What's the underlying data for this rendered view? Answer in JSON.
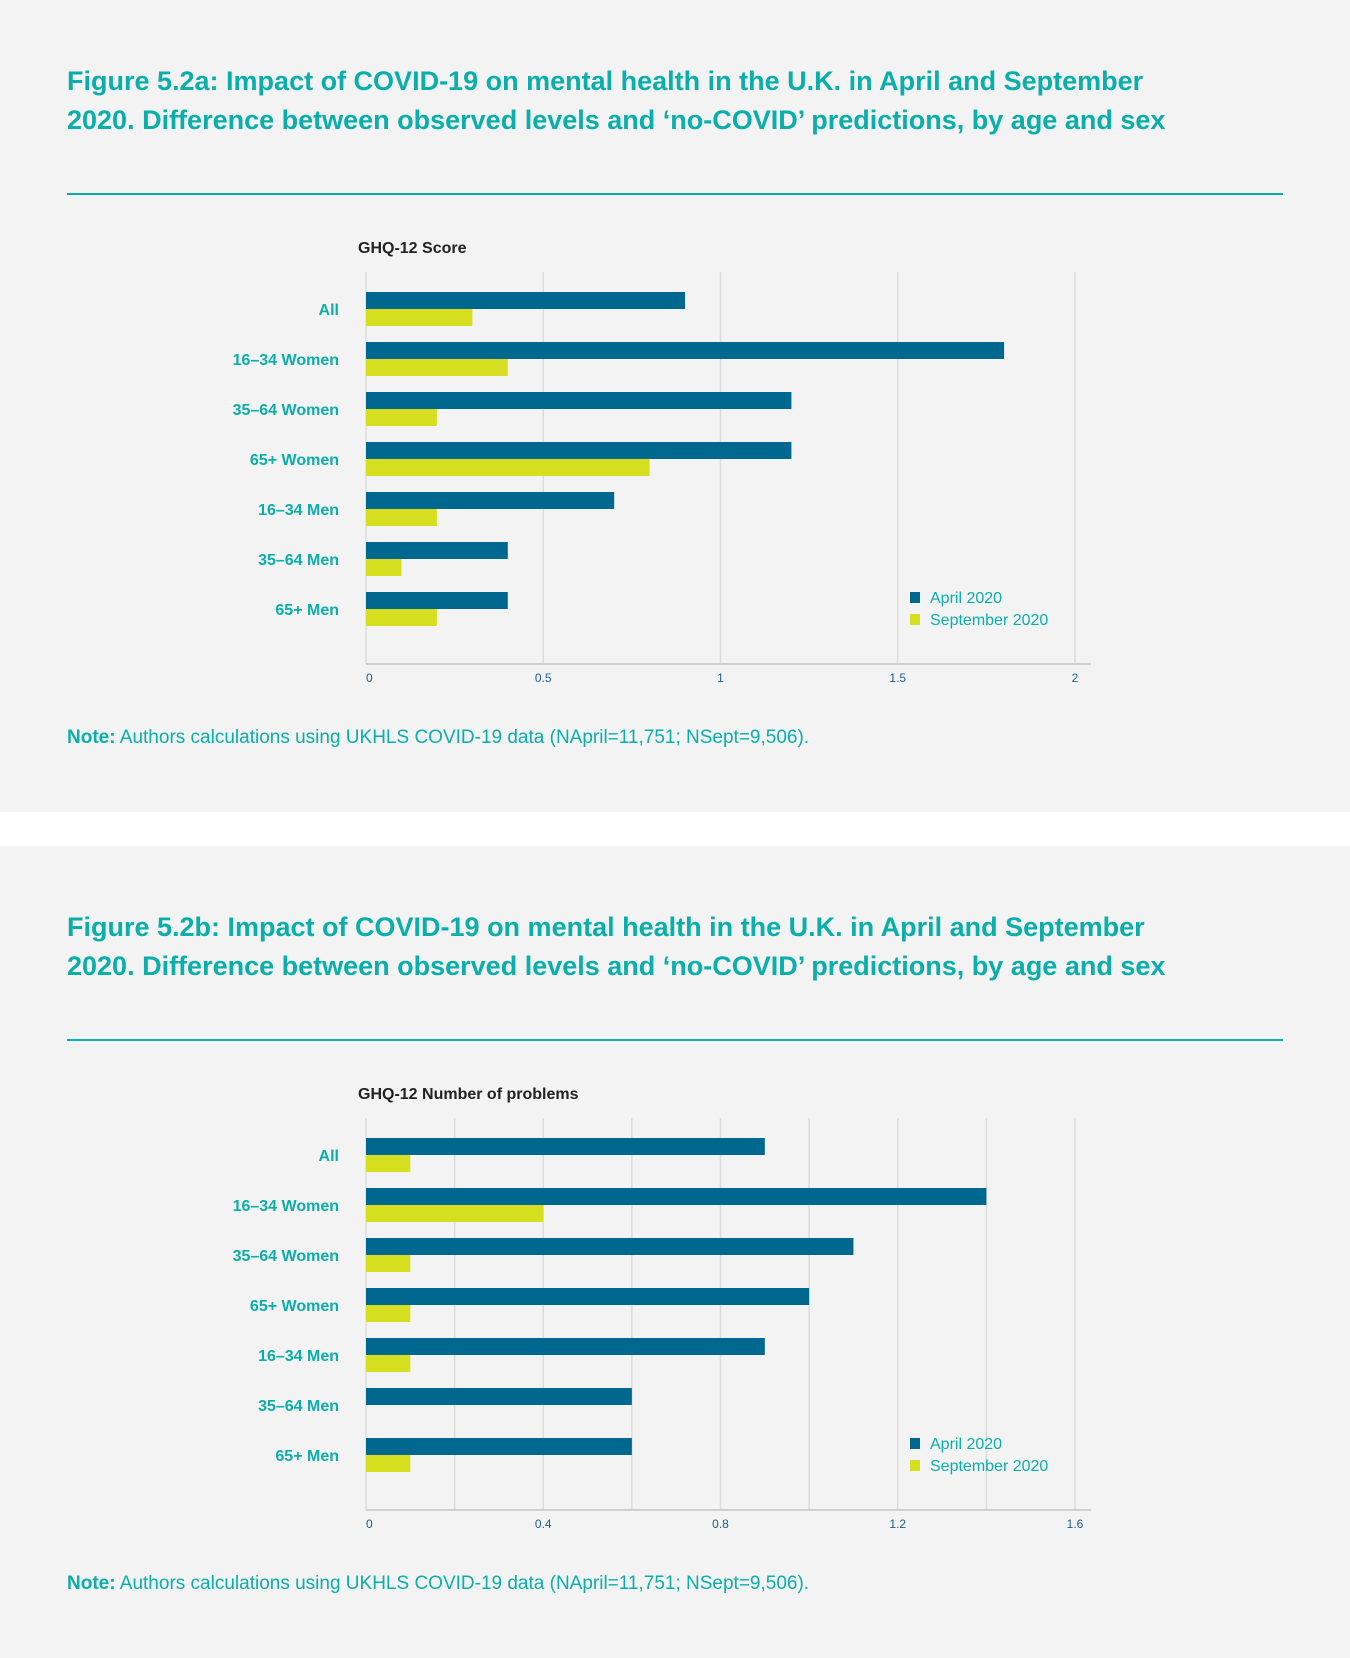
{
  "colors": {
    "april": "#00688f",
    "september": "#d5df1f",
    "accent": "#0aaeaa"
  },
  "figures": [
    {
      "title": "Figure 5.2a: Impact of COVID-19 on mental health in the U.K. in April and September 2020. Difference between observed levels and ‘no-COVID’ predictions, by age and sex",
      "note_label": "Note:",
      "note_text": " Authors calculations using UKHLS COVID-19 data (NApril=11,751; NSept=9,506)."
    },
    {
      "title": "Figure 5.2b: Impact of COVID-19 on mental health in the U.K. in April and September 2020. Difference between observed levels and ‘no-COVID’ predictions, by age and sex",
      "note_label": "Note:",
      "note_text": " Authors calculations using UKHLS COVID-19 data (NApril=11,751; NSept=9,506)."
    }
  ],
  "chart_data": [
    {
      "type": "bar",
      "orientation": "horizontal",
      "title": "GHQ-12 Score",
      "categories": [
        "All",
        "16–34 Women",
        "35–64 Women",
        "65+ Women",
        "16–34 Men",
        "35–64 Men",
        "65+ Men"
      ],
      "series": [
        {
          "name": "April 2020",
          "values": [
            0.9,
            1.8,
            1.2,
            1.2,
            0.7,
            0.4,
            0.4
          ]
        },
        {
          "name": "September 2020",
          "values": [
            0.3,
            0.4,
            0.2,
            0.8,
            0.2,
            0.1,
            0.2
          ]
        }
      ],
      "xlim": [
        0,
        2
      ],
      "xticks": [
        "0",
        "0.5",
        "1",
        "1.5",
        "2"
      ],
      "grid_values": [
        0,
        0.5,
        1,
        1.5,
        2
      ],
      "grid": true,
      "legend": "bottom-right"
    },
    {
      "type": "bar",
      "orientation": "horizontal",
      "title": "GHQ-12 Number of problems",
      "categories": [
        "All",
        "16–34 Women",
        "35–64 Women",
        "65+ Women",
        "16–34 Men",
        "35–64 Men",
        "65+ Men"
      ],
      "series": [
        {
          "name": "April 2020",
          "values": [
            0.9,
            1.4,
            1.1,
            1.0,
            0.9,
            0.6,
            0.6
          ]
        },
        {
          "name": "September 2020",
          "values": [
            0.1,
            0.4,
            0.1,
            0.1,
            0.1,
            0,
            0.1
          ]
        }
      ],
      "xlim": [
        0,
        1.6
      ],
      "xticks": [
        "0",
        "0.4",
        "0.8",
        "1.2",
        "1.6"
      ],
      "grid_values": [
        0,
        0.2,
        0.4,
        0.6,
        0.8,
        1.0,
        1.2,
        1.4,
        1.6
      ],
      "grid": true,
      "legend": "bottom-right"
    }
  ]
}
